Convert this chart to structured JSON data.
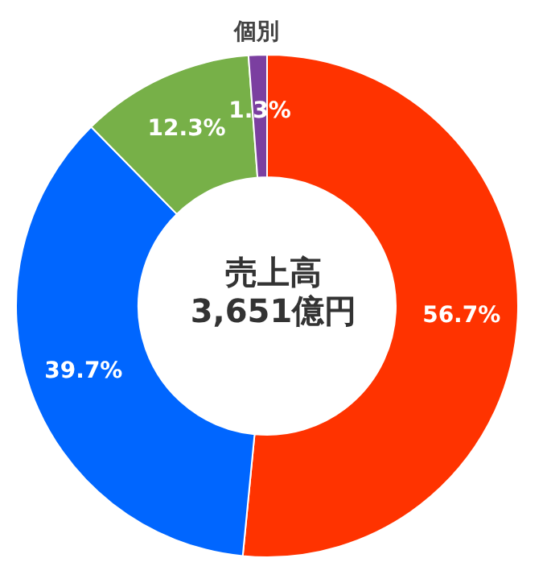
{
  "chart_data": {
    "type": "donut",
    "title": "売上高",
    "subtitle": "3,651億円",
    "categories": [
      null,
      null,
      null,
      "個別"
    ],
    "values": [
      56.7,
      39.7,
      12.3,
      1.3
    ],
    "value_labels": [
      "56.7%",
      "39.7%",
      "12.3%",
      "1.3%"
    ],
    "colors": [
      "#ff3300",
      "#0066ff",
      "#77b048",
      "#7b3fa0"
    ],
    "legend": false
  }
}
